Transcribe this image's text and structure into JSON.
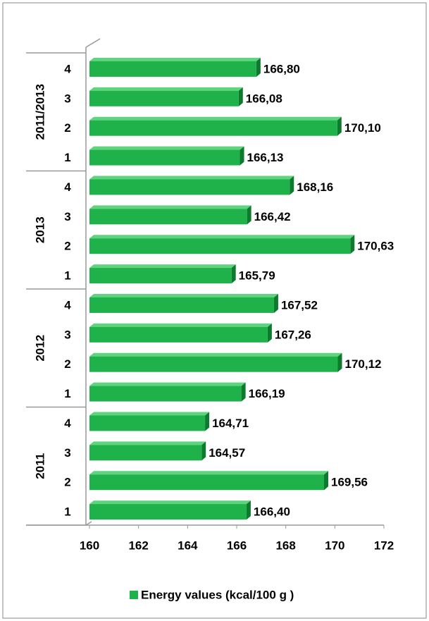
{
  "chart_data": {
    "type": "bar",
    "orientation": "horizontal",
    "groups": [
      "2011",
      "2012",
      "2013",
      "2011/2013"
    ],
    "categories": [
      "1",
      "2",
      "3",
      "4",
      "1",
      "2",
      "3",
      "4",
      "1",
      "2",
      "3",
      "4",
      "1",
      "2",
      "3",
      "4"
    ],
    "series": [
      {
        "name": "Energy values (kcal/100 g )",
        "color": "#1fb14a",
        "values": [
          166.4,
          169.56,
          164.57,
          164.71,
          166.19,
          170.12,
          167.26,
          167.52,
          165.79,
          170.63,
          166.42,
          168.16,
          166.13,
          170.1,
          166.08,
          166.8
        ],
        "value_labels": [
          "166,40",
          "169,56",
          "164,57",
          "164,71",
          "166,19",
          "170,12",
          "167,26",
          "167,52",
          "165,79",
          "170,63",
          "166,42",
          "168,16",
          "166,13",
          "170,10",
          "166,08",
          "166,80"
        ]
      }
    ],
    "xlim": [
      160,
      172
    ],
    "xticks": [
      160,
      162,
      164,
      166,
      168,
      170,
      172
    ],
    "grid": false,
    "legend": "bottom"
  }
}
